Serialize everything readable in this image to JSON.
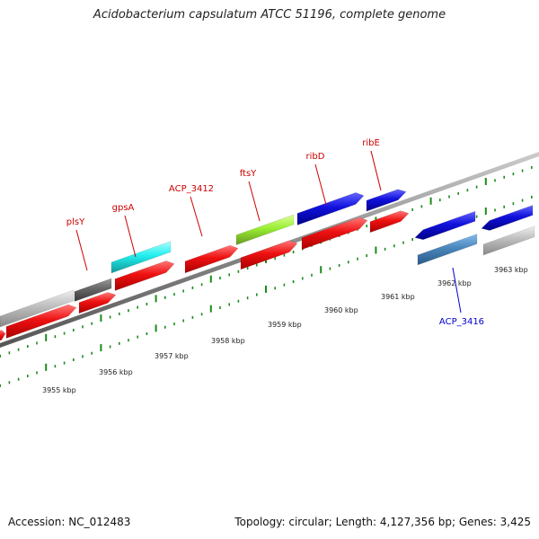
{
  "title": "Acidobacterium capsulatum ATCC 51196, complete genome",
  "accession": "Accession: NC_012483",
  "summary": "Topology: circular; Length: 4,127,356 bp; Genes: 3,425",
  "scale_labels": [
    "3955 kbp",
    "3956 kbp",
    "3957 kbp",
    "3958 kbp",
    "3959 kbp",
    "3960 kbp",
    "3961 kbp",
    "3962 kbp",
    "3963 kbp"
  ],
  "colors": {
    "red": "#ee1111",
    "blue": "#1111dd",
    "cyan": "#22eeee",
    "green": "#99ee33",
    "gray": "#b8b8b8",
    "darkgray": "#6a6a6a",
    "steelblue": "#4a86bb",
    "label_red": "#cc0000",
    "label_blue": "#0000cc",
    "tick": "#1a8a1a",
    "backbone": "#888888"
  },
  "genes": [
    {
      "name": "plsY",
      "color": "red"
    },
    {
      "name": "gpsA",
      "color": "cyan"
    },
    {
      "name": "ACP_3412",
      "color": "red"
    },
    {
      "name": "ftsY",
      "color": "green"
    },
    {
      "name": "ribD",
      "color": "blue"
    },
    {
      "name": "ribE",
      "color": "blue"
    },
    {
      "name": "ACP_3416",
      "color": "steelblue"
    }
  ]
}
